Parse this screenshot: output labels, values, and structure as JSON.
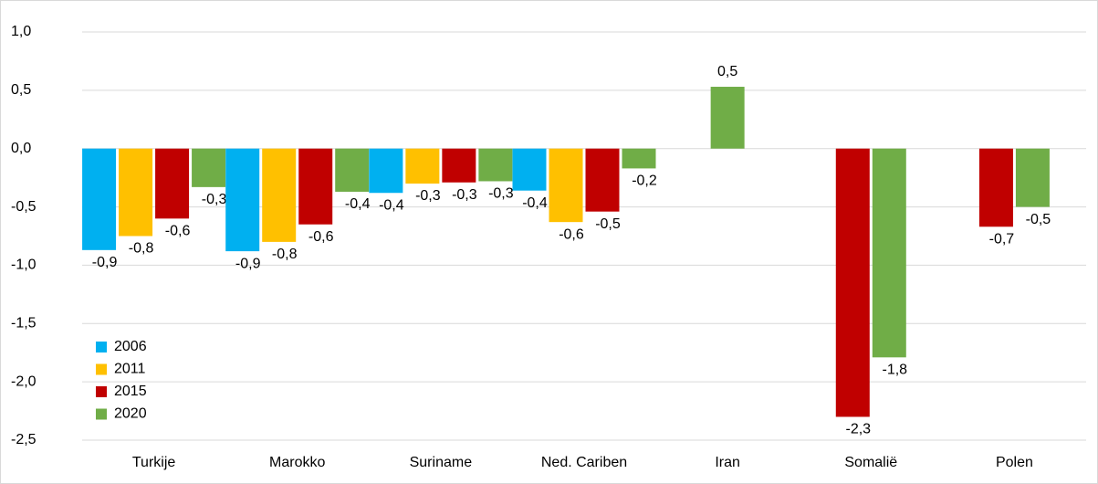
{
  "chart_data": {
    "type": "bar",
    "categories": [
      "Turkije",
      "Marokko",
      "Suriname",
      "Ned. Cariben",
      "Iran",
      "Somalië",
      "Polen"
    ],
    "series": [
      {
        "name": "2006",
        "color": "#00b0f0",
        "values": [
          -0.87,
          -0.88,
          -0.38,
          -0.36,
          null,
          null,
          null
        ],
        "value_labels": [
          "-0,9",
          "-0,9",
          "-0,4",
          "-0,4",
          null,
          null,
          null
        ]
      },
      {
        "name": "2011",
        "color": "#ffc000",
        "values": [
          -0.75,
          -0.8,
          -0.3,
          -0.63,
          null,
          null,
          null
        ],
        "value_labels": [
          "-0,8",
          "-0,8",
          "-0,3",
          "-0,6",
          null,
          null,
          null
        ]
      },
      {
        "name": "2015",
        "color": "#c00000",
        "values": [
          -0.6,
          -0.65,
          -0.29,
          -0.54,
          null,
          -2.3,
          -0.67
        ],
        "value_labels": [
          "-0,6",
          "-0,6",
          "-0,3",
          "-0,5",
          null,
          "-2,3",
          "-0,7"
        ]
      },
      {
        "name": "2020",
        "color": "#70ad47",
        "values": [
          -0.33,
          -0.37,
          -0.28,
          -0.17,
          0.53,
          -1.79,
          -0.5
        ],
        "value_labels": [
          "-0,3",
          "-0,4",
          "-0,3",
          "-0,2",
          "0,5",
          "-1,8",
          "-0,5"
        ]
      }
    ],
    "ylim": [
      -2.5,
      1.0
    ],
    "yticks": [
      {
        "value": -2.5,
        "label": "-2,5"
      },
      {
        "value": -2,
        "label": "-2,0"
      },
      {
        "value": -1.5,
        "label": "-1,5"
      },
      {
        "value": -1,
        "label": "-1,0"
      },
      {
        "value": -0.5,
        "label": "-0,5"
      },
      {
        "value": 0,
        "label": "0,0"
      },
      {
        "value": 0.5,
        "label": "0,5"
      },
      {
        "value": 1,
        "label": "1,0"
      }
    ],
    "grid": true,
    "legend": "lower left"
  }
}
